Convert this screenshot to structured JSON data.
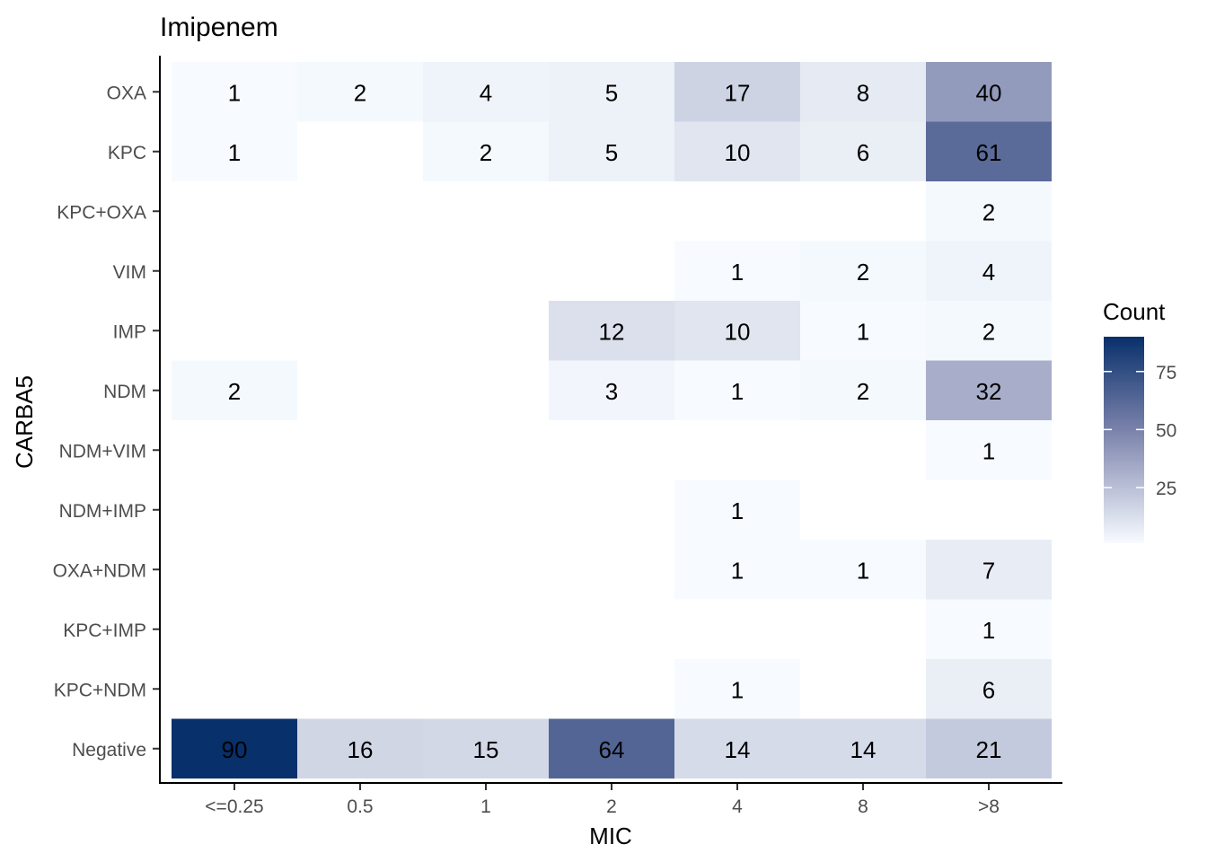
{
  "chart_data": {
    "type": "heatmap",
    "title": "Imipenem",
    "xlabel": "MIC",
    "ylabel": "CARBA5",
    "x_categories": [
      "<=0.25",
      "0.5",
      "1",
      "2",
      "4",
      "8",
      ">8"
    ],
    "y_categories": [
      "OXA",
      "KPC",
      "KPC+OXA",
      "VIM",
      "IMP",
      "NDM",
      "NDM+VIM",
      "NDM+IMP",
      "OXA+NDM",
      "KPC+IMP",
      "KPC+NDM",
      "Negative"
    ],
    "values": [
      [
        1,
        2,
        4,
        5,
        17,
        8,
        40
      ],
      [
        1,
        null,
        2,
        5,
        10,
        6,
        61
      ],
      [
        null,
        null,
        null,
        null,
        null,
        null,
        2
      ],
      [
        null,
        null,
        null,
        null,
        1,
        2,
        4
      ],
      [
        null,
        null,
        null,
        12,
        10,
        1,
        2
      ],
      [
        2,
        null,
        null,
        3,
        1,
        2,
        32
      ],
      [
        null,
        null,
        null,
        null,
        null,
        null,
        1
      ],
      [
        null,
        null,
        null,
        null,
        1,
        null,
        null
      ],
      [
        null,
        null,
        null,
        null,
        1,
        1,
        7
      ],
      [
        null,
        null,
        null,
        null,
        null,
        null,
        1
      ],
      [
        null,
        null,
        null,
        null,
        1,
        null,
        6
      ],
      [
        90,
        16,
        15,
        64,
        14,
        14,
        21
      ]
    ],
    "legend": {
      "title": "Count",
      "ticks": [
        25,
        50,
        75
      ],
      "range": [
        1,
        90
      ],
      "placement": "right"
    },
    "colors": {
      "low": "#f7fbff",
      "high": "#08306b",
      "mid": "#5a6494"
    },
    "grid": false
  }
}
